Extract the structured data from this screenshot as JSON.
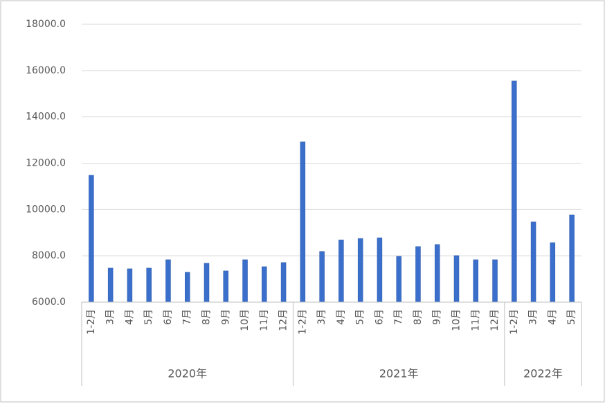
{
  "chart_data": {
    "type": "bar",
    "color": "#3a6fcb",
    "grid": true,
    "ylim": [
      6000,
      18000
    ],
    "yticks": [
      {
        "value": 6000,
        "label": "6000.0"
      },
      {
        "value": 8000,
        "label": "8000.0"
      },
      {
        "value": 10000,
        "label": "10000.0"
      },
      {
        "value": 12000,
        "label": "12000.0"
      },
      {
        "value": 14000,
        "label": "14000.0"
      },
      {
        "value": 16000,
        "label": "16000.0"
      },
      {
        "value": 18000,
        "label": "18000.0"
      }
    ],
    "groups": [
      {
        "name": "2020年",
        "categories": [
          "1-2月",
          "3月",
          "4月",
          "5月",
          "6月",
          "7月",
          "8月",
          "9月",
          "10月",
          "11月",
          "12月"
        ],
        "values": [
          11480,
          7470,
          7440,
          7470,
          7830,
          7290,
          7680,
          7350,
          7830,
          7530,
          7710
        ]
      },
      {
        "name": "2021年",
        "categories": [
          "1-2月",
          "3月",
          "4月",
          "5月",
          "6月",
          "7月",
          "8月",
          "9月",
          "10月",
          "11月",
          "12月"
        ],
        "values": [
          12920,
          8190,
          8690,
          8750,
          8780,
          7980,
          8400,
          8490,
          8010,
          7830,
          7830
        ]
      },
      {
        "name": "2022年",
        "categories": [
          "1-2月",
          "3月",
          "4月",
          "5月"
        ],
        "values": [
          15550,
          9470,
          8570,
          9770
        ]
      }
    ]
  }
}
